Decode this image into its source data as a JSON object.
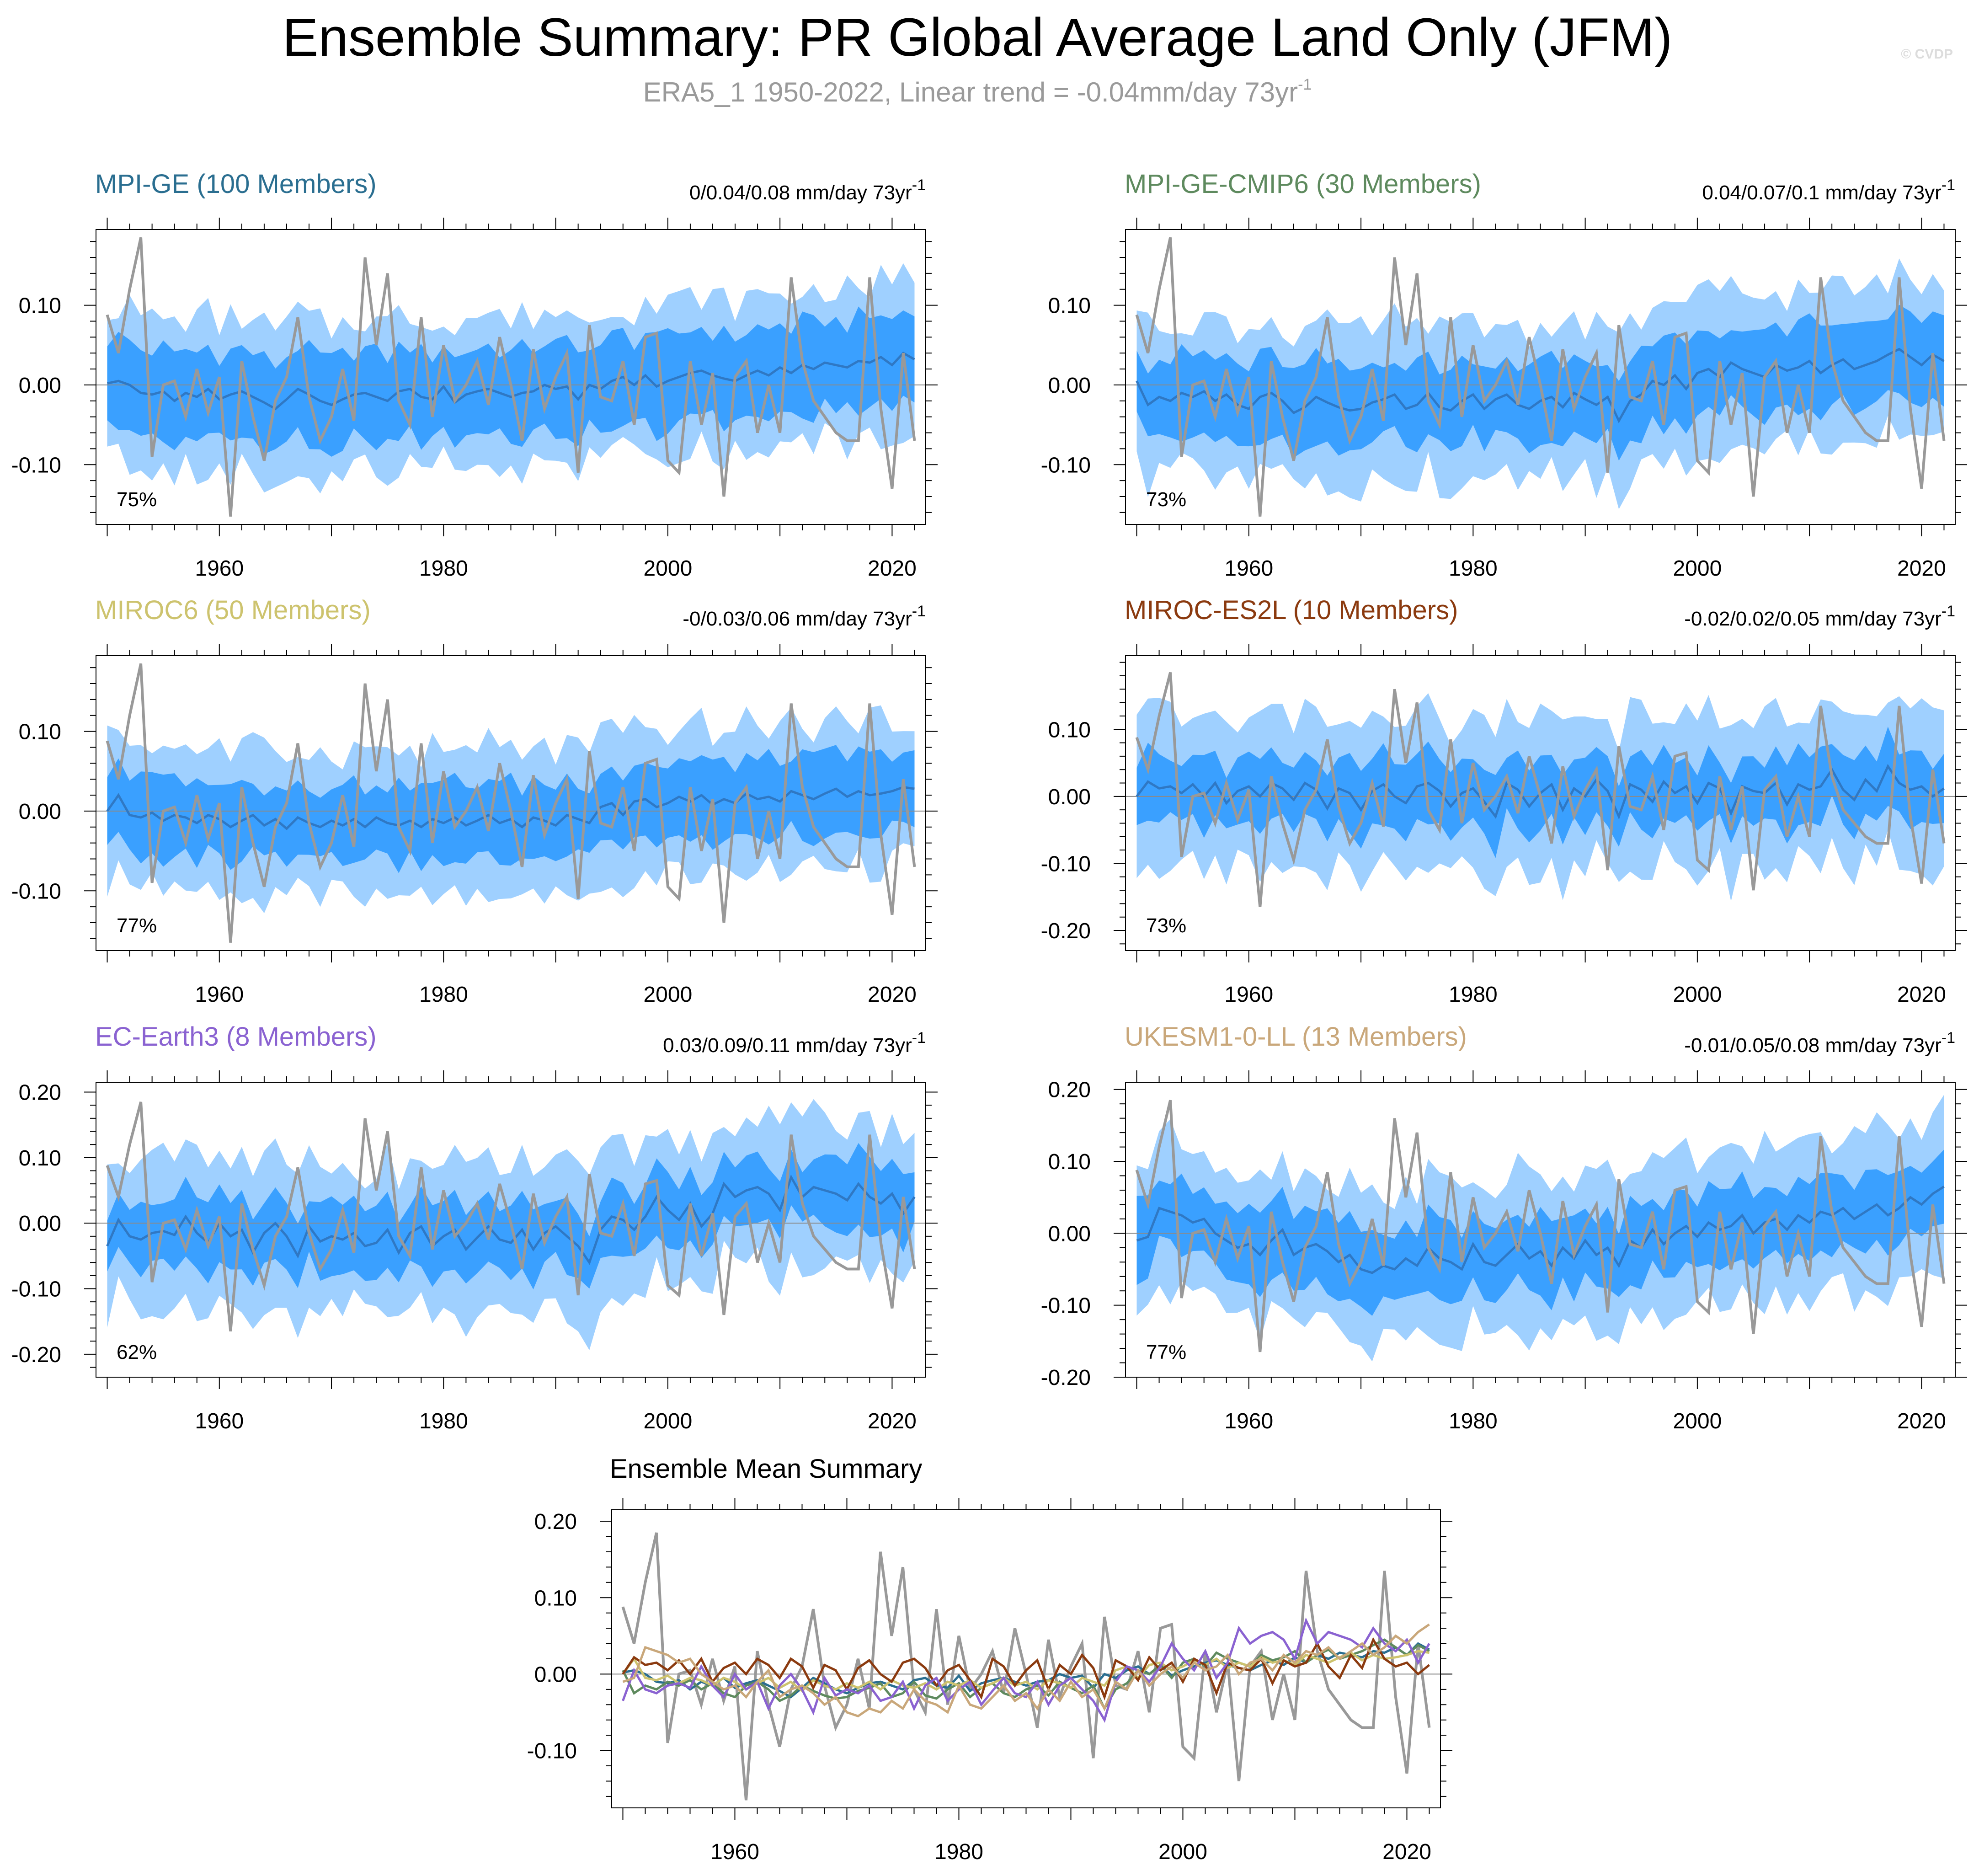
{
  "header": {
    "title": "Ensemble Summary: PR Global Average Land Only (JFM)",
    "subtitle": "ERA5_1 1950-2022, Linear trend = -0.04mm/day 73yr",
    "subtitle_sup": "-1",
    "watermark": "© CVDP"
  },
  "colors": {
    "observations": "#999999",
    "inner_band": "#3aa0ff",
    "outer_band": "#9fd0ff",
    "ensemble_mean": "#2f78c4"
  },
  "chart_data": [
    {
      "type": "line",
      "title": "MPI-GE (100 Members)",
      "title_color": "#2a6e90",
      "trend": "0/0.04/0.08 mm/day 73yr",
      "trend_sup": "-1",
      "percent": "75%",
      "xlim": [
        1949,
        2023
      ],
      "ylim": [
        -0.175,
        0.195
      ],
      "yticks": [
        -0.1,
        0.0,
        0.1
      ],
      "ytick_labels": [
        "-0.10",
        "0.00",
        "0.10"
      ],
      "xticks": [
        1960,
        1980,
        2000,
        2020
      ],
      "xtick_labels": [
        "1960",
        "1980",
        "2000",
        "2020"
      ],
      "bands": {
        "mean_start": 0.002,
        "mean_end": 0.032,
        "inner": 0.055,
        "outer": 0.095
      },
      "series": [
        {
          "role": "observations"
        },
        {
          "role": "ensemble_mean",
          "values": [
            0.002,
            0.005,
            0.0,
            -0.01,
            -0.012,
            -0.008,
            -0.02,
            -0.01,
            -0.015,
            -0.005,
            -0.018,
            -0.012,
            -0.008,
            -0.015,
            -0.022,
            -0.03,
            -0.018,
            -0.005,
            -0.012,
            -0.02,
            -0.025,
            -0.018,
            -0.012,
            -0.01,
            -0.015,
            -0.02,
            -0.008,
            -0.005,
            -0.015,
            -0.018,
            -0.002,
            -0.022,
            -0.012,
            -0.008,
            -0.005,
            -0.01,
            -0.015,
            -0.01,
            -0.008,
            0.0,
            -0.005,
            -0.002,
            -0.018,
            0.0,
            -0.005,
            0.005,
            0.01,
            0.0,
            0.012,
            -0.002,
            0.005,
            0.01,
            0.015,
            0.018,
            0.012,
            0.008,
            0.005,
            0.012,
            0.018,
            0.012,
            0.022,
            0.015,
            0.025,
            0.02,
            0.028,
            0.025,
            0.022,
            0.03,
            0.028,
            0.035,
            0.025,
            0.04,
            0.032
          ]
        }
      ]
    },
    {
      "type": "line",
      "title": "MPI-GE-CMIP6 (30 Members)",
      "title_color": "#5e8a5e",
      "trend": "0.04/0.07/0.1 mm/day 73yr",
      "trend_sup": "-1",
      "percent": "73%",
      "xlim": [
        1949,
        2023
      ],
      "ylim": [
        -0.175,
        0.195
      ],
      "yticks": [
        -0.1,
        0.0,
        0.1
      ],
      "ytick_labels": [
        "-0.10",
        "0.00",
        "0.10"
      ],
      "xticks": [
        1960,
        1980,
        2000,
        2020
      ],
      "xtick_labels": [
        "1960",
        "1980",
        "2000",
        "2020"
      ],
      "bands": {
        "mean_start": -0.01,
        "mean_end": 0.03,
        "inner": 0.05,
        "outer": 0.095
      },
      "series": [
        {
          "role": "observations"
        },
        {
          "role": "ensemble_mean",
          "values": [
            0.005,
            -0.025,
            -0.015,
            -0.02,
            -0.01,
            -0.015,
            -0.008,
            -0.02,
            -0.012,
            -0.025,
            -0.03,
            -0.015,
            -0.01,
            -0.02,
            -0.035,
            -0.028,
            -0.015,
            -0.022,
            -0.028,
            -0.032,
            -0.03,
            -0.022,
            -0.018,
            -0.012,
            -0.03,
            -0.025,
            -0.01,
            -0.028,
            -0.032,
            -0.02,
            -0.012,
            -0.03,
            -0.018,
            -0.012,
            -0.025,
            -0.03,
            -0.02,
            -0.015,
            -0.028,
            -0.01,
            -0.018,
            -0.025,
            -0.015,
            -0.045,
            -0.02,
            -0.012,
            0.005,
            0.0,
            0.012,
            -0.005,
            0.015,
            0.02,
            0.01,
            0.028,
            0.02,
            0.015,
            0.01,
            0.025,
            0.018,
            0.022,
            0.03,
            0.015,
            0.025,
            0.032,
            0.02,
            0.025,
            0.03,
            0.038,
            0.045,
            0.035,
            0.025,
            0.038,
            0.03
          ]
        }
      ]
    },
    {
      "type": "line",
      "title": "MIROC6 (50 Members)",
      "title_color": "#cdc36e",
      "trend": "-0/0.03/0.06 mm/day 73yr",
      "trend_sup": "-1",
      "percent": "77%",
      "xlim": [
        1949,
        2023
      ],
      "ylim": [
        -0.175,
        0.195
      ],
      "yticks": [
        -0.1,
        0.0,
        0.1
      ],
      "ytick_labels": [
        "-0.10",
        "0.00",
        "0.10"
      ],
      "xticks": [
        1960,
        1980,
        2000,
        2020
      ],
      "xtick_labels": [
        "1960",
        "1980",
        "2000",
        "2020"
      ],
      "bands": {
        "mean_start": 0.0,
        "mean_end": 0.028,
        "inner": 0.048,
        "outer": 0.09
      },
      "series": [
        {
          "role": "observations"
        },
        {
          "role": "ensemble_mean",
          "values": [
            0.0,
            0.02,
            -0.005,
            -0.008,
            -0.002,
            -0.012,
            -0.005,
            -0.008,
            -0.015,
            -0.005,
            -0.01,
            -0.02,
            -0.012,
            -0.005,
            -0.018,
            -0.01,
            -0.022,
            -0.008,
            -0.015,
            -0.02,
            -0.012,
            -0.018,
            -0.01,
            -0.02,
            -0.008,
            -0.015,
            -0.018,
            -0.012,
            -0.02,
            -0.01,
            -0.015,
            -0.008,
            -0.018,
            -0.012,
            -0.005,
            -0.015,
            -0.01,
            -0.02,
            -0.008,
            -0.012,
            -0.018,
            -0.005,
            -0.01,
            -0.015,
            0.005,
            0.01,
            -0.005,
            0.012,
            0.015,
            0.005,
            0.01,
            0.018,
            0.012,
            0.02,
            0.008,
            0.015,
            0.01,
            0.022,
            0.015,
            0.018,
            0.012,
            0.025,
            0.02,
            0.015,
            0.022,
            0.028,
            0.018,
            0.025,
            0.02,
            0.022,
            0.025,
            0.03,
            0.028
          ]
        }
      ]
    },
    {
      "type": "line",
      "title": "MIROC-ES2L (10 Members)",
      "title_color": "#8b3a0f",
      "trend": "-0.02/0.02/0.05 mm/day 73yr",
      "trend_sup": "-1",
      "percent": "73%",
      "xlim": [
        1949,
        2023
      ],
      "ylim": [
        -0.23,
        0.21
      ],
      "yticks": [
        -0.2,
        -0.1,
        0.0,
        0.1
      ],
      "ytick_labels": [
        "-0.20",
        "-0.10",
        "0.00",
        "0.10"
      ],
      "xticks": [
        1960,
        1980,
        2000,
        2020
      ],
      "xtick_labels": [
        "1960",
        "1980",
        "2000",
        "2020"
      ],
      "bands": {
        "mean_start": 0.0,
        "mean_end": 0.01,
        "inner": 0.05,
        "outer": 0.11
      },
      "series": [
        {
          "role": "observations"
        },
        {
          "role": "ensemble_mean",
          "values": [
            0.0,
            0.022,
            0.012,
            0.015,
            0.005,
            0.018,
            0.0,
            0.02,
            -0.01,
            0.008,
            0.015,
            0.0,
            0.02,
            0.012,
            -0.005,
            0.02,
            0.01,
            -0.018,
            0.012,
            0.005,
            -0.02,
            0.008,
            0.018,
            0.0,
            -0.01,
            0.015,
            0.02,
            0.008,
            -0.015,
            0.005,
            0.012,
            -0.008,
            -0.03,
            0.02,
            0.01,
            -0.015,
            0.005,
            0.018,
            -0.02,
            0.012,
            0.0,
            0.025,
            0.008,
            -0.03,
            0.018,
            0.01,
            -0.008,
            0.022,
            0.005,
            0.015,
            -0.01,
            0.02,
            0.012,
            -0.025,
            0.015,
            0.008,
            0.005,
            0.02,
            -0.012,
            0.018,
            0.01,
            0.015,
            0.04,
            0.01,
            -0.005,
            0.025,
            0.008,
            0.045,
            0.02,
            0.01,
            0.015,
            0.0,
            0.012
          ]
        }
      ]
    },
    {
      "type": "line",
      "title": "EC-Earth3 (8 Members)",
      "title_color": "#8a62d1",
      "trend": "0.03/0.09/0.11 mm/day 73yr",
      "trend_sup": "-1",
      "percent": "62%",
      "xlim": [
        1949,
        2023
      ],
      "ylim": [
        -0.235,
        0.215
      ],
      "yticks": [
        -0.2,
        -0.1,
        0.0,
        0.1,
        0.2
      ],
      "ytick_labels": [
        "-0.20",
        "-0.10",
        "0.00",
        "0.10",
        "0.20"
      ],
      "xticks": [
        1960,
        1980,
        2000,
        2020
      ],
      "xtick_labels": [
        "1960",
        "1980",
        "2000",
        "2020"
      ],
      "bands": {
        "mean_start": -0.03,
        "mean_end": 0.04,
        "inner": 0.05,
        "outer": 0.11
      },
      "series": [
        {
          "role": "observations"
        },
        {
          "role": "ensemble_mean",
          "values": [
            -0.035,
            0.005,
            -0.02,
            -0.025,
            -0.015,
            -0.012,
            -0.018,
            0.01,
            -0.015,
            -0.03,
            0.0,
            -0.02,
            -0.01,
            -0.045,
            -0.015,
            0.0,
            -0.02,
            -0.05,
            -0.005,
            -0.028,
            -0.02,
            -0.025,
            -0.015,
            -0.035,
            -0.03,
            -0.01,
            -0.045,
            -0.015,
            -0.005,
            -0.035,
            -0.02,
            -0.01,
            -0.04,
            -0.022,
            -0.005,
            -0.025,
            -0.03,
            -0.01,
            -0.04,
            -0.015,
            -0.005,
            -0.02,
            -0.035,
            -0.06,
            -0.01,
            0.01,
            0.005,
            -0.01,
            0.01,
            0.04,
            0.02,
            0.005,
            0.03,
            -0.005,
            0.015,
            0.06,
            0.04,
            0.05,
            0.055,
            0.045,
            0.02,
            0.07,
            0.04,
            0.055,
            0.05,
            0.045,
            0.035,
            0.06,
            0.04,
            0.03,
            0.045,
            0.015,
            0.04
          ]
        }
      ]
    },
    {
      "type": "line",
      "title": "UKESM1-0-LL (13 Members)",
      "title_color": "#c9a77a",
      "trend": "-0.01/0.05/0.08 mm/day 73yr",
      "trend_sup": "-1",
      "percent": "77%",
      "xlim": [
        1949,
        2023
      ],
      "ylim": [
        -0.2,
        0.21
      ],
      "yticks": [
        -0.2,
        -0.1,
        0.0,
        0.1,
        0.2
      ],
      "ytick_labels": [
        "-0.20",
        "-0.10",
        "0.00",
        "0.10",
        "0.20"
      ],
      "xticks": [
        1960,
        1980,
        2000,
        2020
      ],
      "xtick_labels": [
        "1960",
        "1980",
        "2000",
        "2020"
      ],
      "bands": {
        "mean_start": -0.01,
        "mean_end": 0.065,
        "inner": 0.05,
        "outer": 0.105
      },
      "series": [
        {
          "role": "observations"
        },
        {
          "role": "ensemble_mean",
          "values": [
            -0.01,
            -0.005,
            0.035,
            0.03,
            0.025,
            0.015,
            0.02,
            0.0,
            -0.01,
            -0.02,
            -0.015,
            -0.03,
            -0.01,
            0.005,
            -0.03,
            -0.02,
            -0.015,
            -0.025,
            -0.04,
            -0.03,
            -0.05,
            -0.055,
            -0.045,
            -0.05,
            -0.035,
            -0.045,
            -0.02,
            -0.035,
            -0.04,
            -0.05,
            -0.015,
            -0.04,
            -0.045,
            -0.03,
            -0.015,
            -0.035,
            -0.025,
            -0.045,
            -0.02,
            -0.035,
            -0.01,
            -0.03,
            -0.02,
            -0.045,
            -0.01,
            -0.02,
            0.005,
            -0.015,
            0.0,
            0.01,
            -0.005,
            0.015,
            0.005,
            0.01,
            0.025,
            0.0,
            0.015,
            0.02,
            0.005,
            0.025,
            0.015,
            0.03,
            0.025,
            0.035,
            0.02,
            0.03,
            0.04,
            0.025,
            0.035,
            0.05,
            0.04,
            0.055,
            0.065
          ]
        }
      ]
    },
    {
      "type": "line",
      "title": "Ensemble Mean Summary",
      "xlim": [
        1949,
        2023
      ],
      "ylim": [
        -0.175,
        0.215
      ],
      "yticks": [
        -0.1,
        0.0,
        0.1,
        0.2
      ],
      "ytick_labels": [
        "-0.10",
        "0.00",
        "0.10",
        "0.20"
      ],
      "xticks": [
        1960,
        1980,
        2000,
        2020
      ],
      "xtick_labels": [
        "1960",
        "1980",
        "2000",
        "2020"
      ],
      "series": [
        {
          "role": "observations",
          "color": "#999999"
        },
        {
          "role": "model_mean",
          "model_index": 0,
          "color": "#2a6e90"
        },
        {
          "role": "model_mean",
          "model_index": 1,
          "color": "#5e8a5e"
        },
        {
          "role": "model_mean",
          "model_index": 2,
          "color": "#cdc36e"
        },
        {
          "role": "model_mean",
          "model_index": 3,
          "color": "#8b3a0f"
        },
        {
          "role": "model_mean",
          "model_index": 4,
          "color": "#8a62d1"
        },
        {
          "role": "model_mean",
          "model_index": 5,
          "color": "#c9a77a"
        }
      ]
    }
  ],
  "observations": {
    "name": "ERA5_1",
    "x": [
      1950,
      1951,
      1952,
      1953,
      1954,
      1955,
      1956,
      1957,
      1958,
      1959,
      1960,
      1961,
      1962,
      1963,
      1964,
      1965,
      1966,
      1967,
      1968,
      1969,
      1970,
      1971,
      1972,
      1973,
      1974,
      1975,
      1976,
      1977,
      1978,
      1979,
      1980,
      1981,
      1982,
      1983,
      1984,
      1985,
      1986,
      1987,
      1988,
      1989,
      1990,
      1991,
      1992,
      1993,
      1994,
      1995,
      1996,
      1997,
      1998,
      1999,
      2000,
      2001,
      2002,
      2003,
      2004,
      2005,
      2006,
      2007,
      2008,
      2009,
      2010,
      2011,
      2012,
      2013,
      2014,
      2015,
      2016,
      2017,
      2018,
      2019,
      2020,
      2021,
      2022
    ],
    "values": [
      0.088,
      0.04,
      0.12,
      0.185,
      -0.09,
      0.0,
      0.005,
      -0.04,
      0.02,
      -0.035,
      0.01,
      -0.165,
      0.03,
      -0.04,
      -0.095,
      -0.02,
      0.01,
      0.085,
      -0.015,
      -0.07,
      -0.04,
      0.02,
      -0.045,
      0.16,
      0.05,
      0.14,
      -0.02,
      -0.05,
      0.085,
      -0.04,
      0.05,
      -0.02,
      0.0,
      0.03,
      -0.025,
      0.06,
      0.0,
      -0.07,
      0.045,
      -0.03,
      0.01,
      0.04,
      -0.11,
      0.075,
      -0.015,
      -0.02,
      0.03,
      -0.05,
      0.06,
      0.065,
      -0.095,
      -0.11,
      0.03,
      -0.05,
      0.015,
      -0.14,
      0.01,
      0.03,
      -0.06,
      0.0,
      -0.06,
      0.135,
      0.03,
      -0.02,
      -0.04,
      -0.06,
      -0.07,
      -0.07,
      0.135,
      -0.03,
      -0.13,
      0.04,
      -0.07
    ]
  }
}
